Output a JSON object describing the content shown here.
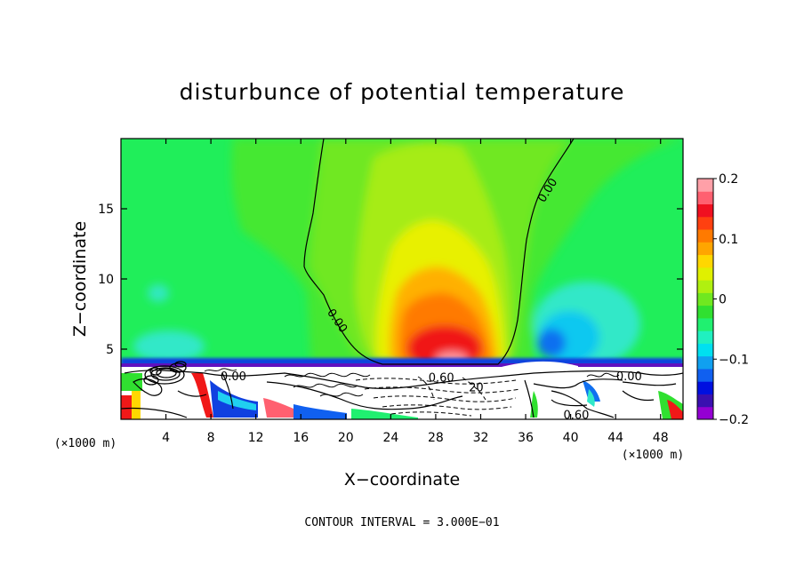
{
  "chart_data": {
    "type": "heatmap",
    "title": "disturbunce of potential temperature",
    "xlabel": "X−coordinate",
    "ylabel": "Z−coordinate",
    "x_unit_label": "(×1000 m)",
    "z_unit_label": "(×1000 m)",
    "xlim": [
      0,
      50
    ],
    "ylim": [
      0,
      20
    ],
    "x_ticks": [
      4,
      8,
      12,
      16,
      20,
      24,
      28,
      32,
      36,
      40,
      44,
      48
    ],
    "x_tick_labels": [
      "4",
      "8",
      "12",
      "16",
      "20",
      "24",
      "28",
      "32",
      "36",
      "40",
      "44",
      "48"
    ],
    "y_ticks": [
      5,
      10,
      15
    ],
    "y_tick_labels": [
      "5",
      "10",
      "15"
    ],
    "colorbar": {
      "range": [
        -0.2,
        0.2
      ],
      "ticks": [
        0.2,
        0.1,
        0,
        -0.1,
        -0.2
      ],
      "tick_labels": [
        "0.2",
        "0.1",
        "0",
        "−0.1",
        "−0.2"
      ],
      "colors": [
        "#9400d3",
        "#3a10b0",
        "#0010e0",
        "#1060f0",
        "#10a0f0",
        "#00e0f0",
        "#20f0c0",
        "#20f070",
        "#30e030",
        "#70e820",
        "#b0f010",
        "#e0f000",
        "#ffd700",
        "#ffa500",
        "#ff7a00",
        "#ff4010",
        "#f01020",
        "#ff6070",
        "#ffa0a8"
      ]
    },
    "contour_interval_text": "CONTOUR INTERVAL = 3.000E−01",
    "contour_labels": [
      {
        "text": "0.00",
        "x": 38.0,
        "z": 16.3,
        "rotation": -58
      },
      {
        "text": "0.00",
        "x": 19.2,
        "z": 7.0,
        "rotation": 55
      },
      {
        "text": "0.00",
        "x": 10.0,
        "z": 3.0,
        "rotation": 0
      },
      {
        "text": "0.00",
        "x": 45.2,
        "z": 3.0,
        "rotation": 0
      },
      {
        "text": "0.60",
        "x": 28.5,
        "z": 2.9,
        "rotation": 0
      },
      {
        "text": "20",
        "x": 31.6,
        "z": 2.2,
        "rotation": 0
      },
      {
        "text": "0.60",
        "x": 40.5,
        "z": 0.25,
        "rotation": 0
      }
    ],
    "features": {
      "warm_anomaly_center": {
        "x": 29.5,
        "z": 4.5,
        "value": 0.2
      },
      "cold_anomaly_center": {
        "x": 38.0,
        "z": 5.5,
        "value": -0.1
      }
    }
  }
}
